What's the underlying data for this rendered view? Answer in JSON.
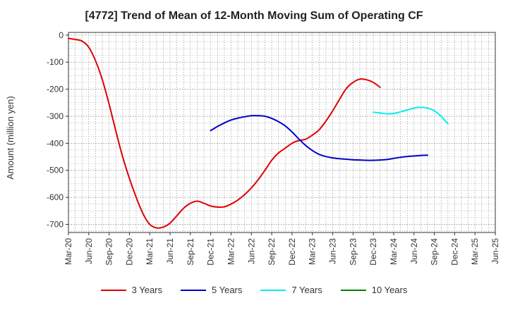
{
  "chart_data": {
    "type": "line",
    "title": "[4772]  Trend of Mean of 12-Month Moving Sum of Operating CF",
    "xlabel": "",
    "ylabel": "Amount (million yen)",
    "ylim": [
      -730,
      10
    ],
    "yticks": [
      0,
      -100,
      -200,
      -300,
      -400,
      -500,
      -600,
      -700
    ],
    "ytick_labels": [
      "0",
      "-100",
      "-200",
      "-300",
      "-400",
      "-500",
      "-600",
      "-700"
    ],
    "x_categories": [
      "Mar-20",
      "Jun-20",
      "Sep-20",
      "Dec-20",
      "Mar-21",
      "Jun-21",
      "Sep-21",
      "Dec-21",
      "Mar-22",
      "Jun-22",
      "Sep-22",
      "Dec-22",
      "Mar-23",
      "Jun-23",
      "Sep-23",
      "Dec-23",
      "Mar-24",
      "Jun-24",
      "Sep-24",
      "Dec-24",
      "Mar-25",
      "Jun-25"
    ],
    "grid": true,
    "legend_position": "bottom",
    "series": [
      {
        "name": "3 Years",
        "color": "#e00000",
        "points": [
          [
            0,
            -12
          ],
          [
            1,
            -16
          ],
          [
            2,
            -22
          ],
          [
            3,
            -45
          ],
          [
            4,
            -95
          ],
          [
            5,
            -165
          ],
          [
            6,
            -255
          ],
          [
            7,
            -355
          ],
          [
            8,
            -450
          ],
          [
            9,
            -530
          ],
          [
            10,
            -600
          ],
          [
            11,
            -660
          ],
          [
            12,
            -700
          ],
          [
            13,
            -713
          ],
          [
            14,
            -710
          ],
          [
            15,
            -695
          ],
          [
            16,
            -668
          ],
          [
            17,
            -640
          ],
          [
            18,
            -622
          ],
          [
            19,
            -614
          ],
          [
            20,
            -622
          ],
          [
            21,
            -632
          ],
          [
            22,
            -636
          ],
          [
            23,
            -635
          ],
          [
            24,
            -625
          ],
          [
            25,
            -610
          ],
          [
            26,
            -590
          ],
          [
            27,
            -565
          ],
          [
            28,
            -535
          ],
          [
            29,
            -500
          ],
          [
            30,
            -463
          ],
          [
            31,
            -436
          ],
          [
            32,
            -418
          ],
          [
            33,
            -400
          ],
          [
            34,
            -390
          ],
          [
            35,
            -385
          ],
          [
            36,
            -370
          ],
          [
            37,
            -350
          ],
          [
            38,
            -318
          ],
          [
            39,
            -280
          ],
          [
            40,
            -238
          ],
          [
            41,
            -198
          ],
          [
            42,
            -175
          ],
          [
            43,
            -163
          ],
          [
            44,
            -165
          ],
          [
            45,
            -175
          ],
          [
            46,
            -193
          ]
        ]
      },
      {
        "name": "5 Years",
        "color": "#0000cc",
        "points": [
          [
            21,
            -353
          ],
          [
            22,
            -338
          ],
          [
            23,
            -325
          ],
          [
            24,
            -314
          ],
          [
            25,
            -307
          ],
          [
            26,
            -302
          ],
          [
            27,
            -298
          ],
          [
            28,
            -298
          ],
          [
            29,
            -300
          ],
          [
            30,
            -308
          ],
          [
            31,
            -320
          ],
          [
            32,
            -336
          ],
          [
            33,
            -358
          ],
          [
            34,
            -384
          ],
          [
            35,
            -408
          ],
          [
            36,
            -427
          ],
          [
            37,
            -441
          ],
          [
            38,
            -449
          ],
          [
            39,
            -454
          ],
          [
            40,
            -457
          ],
          [
            41,
            -459
          ],
          [
            42,
            -461
          ],
          [
            43,
            -462
          ],
          [
            44,
            -463
          ],
          [
            45,
            -463
          ],
          [
            46,
            -462
          ],
          [
            47,
            -460
          ],
          [
            48,
            -456
          ],
          [
            49,
            -452
          ],
          [
            50,
            -449
          ],
          [
            51,
            -447
          ],
          [
            52,
            -445
          ],
          [
            53,
            -444
          ]
        ]
      },
      {
        "name": "7 Years",
        "color": "#00eeee",
        "points": [
          [
            45,
            -285
          ],
          [
            46,
            -288
          ],
          [
            47,
            -291
          ],
          [
            48,
            -290
          ],
          [
            49,
            -284
          ],
          [
            50,
            -277
          ],
          [
            51,
            -270
          ],
          [
            52,
            -267
          ],
          [
            53,
            -270
          ],
          [
            54,
            -280
          ],
          [
            55,
            -300
          ],
          [
            56,
            -328
          ]
        ]
      },
      {
        "name": "10 Years",
        "color": "#008000",
        "points": []
      }
    ]
  }
}
